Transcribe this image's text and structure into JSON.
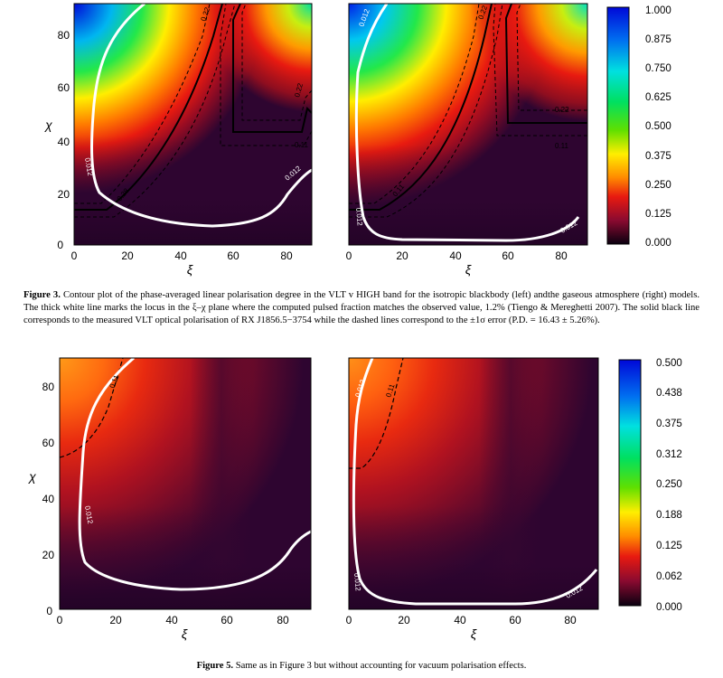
{
  "figure3": {
    "caption_label": "Figure 3.",
    "caption_text": "Contour plot of the phase-averaged linear polarisation degree in the VLT v HIGH band for the isotropic blackbody (left) andthe gaseous atmosphere (right) models. The thick white line marks the locus in the ξ–χ plane where the computed pulsed fraction matches the observed value, 1.2% (Tiengo & Mereghetti 2007). The solid black line corresponds to the measured VLT optical polarisation of RX J1856.5−3754 while the dashed lines correspond to the ±1σ error (P.D. = 16.43 ± 5.26%)."
  },
  "figure5": {
    "caption_label": "Figure 5.",
    "caption_text": "Same as in Figure 3 but without accounting for vacuum polarisation effects."
  },
  "chart_data": [
    {
      "type": "heatmap",
      "panel": "figure3-left",
      "xlabel": "ξ",
      "ylabel": "χ",
      "xlim": [
        0,
        90
      ],
      "ylim": [
        0,
        90
      ],
      "xticks": [
        "0",
        "20",
        "40",
        "60",
        "80"
      ],
      "yticks": [
        "0",
        "20",
        "40",
        "60",
        "80"
      ],
      "colorscale": "rainbow (black-purple-red-yellow-green-cyan-blue)",
      "contour_labels": [
        "0.012",
        "0.012",
        "0.22",
        "0.22",
        "0.28",
        "0.11"
      ]
    },
    {
      "type": "heatmap",
      "panel": "figure3-right",
      "xlabel": "ξ",
      "ylabel": "",
      "xlim": [
        0,
        90
      ],
      "ylim": [
        0,
        90
      ],
      "xticks": [
        "0",
        "20",
        "40",
        "60",
        "80"
      ],
      "contour_labels": [
        "0.012",
        "0.012",
        "0.012",
        "0.22",
        "0.22",
        "0.11",
        "0.11"
      ],
      "colorbar": {
        "ticks": [
          "1.000",
          "0.875",
          "0.750",
          "0.625",
          "0.500",
          "0.375",
          "0.250",
          "0.125",
          "0.000"
        ],
        "range": [
          0,
          1
        ]
      }
    },
    {
      "type": "heatmap",
      "panel": "figure5-left",
      "xlabel": "ξ",
      "ylabel": "χ",
      "xlim": [
        0,
        90
      ],
      "ylim": [
        0,
        90
      ],
      "xticks": [
        "0",
        "20",
        "40",
        "60",
        "80"
      ],
      "yticks": [
        "0",
        "20",
        "40",
        "60",
        "80"
      ],
      "contour_labels": [
        "0.11",
        "0.012"
      ]
    },
    {
      "type": "heatmap",
      "panel": "figure5-right",
      "xlabel": "ξ",
      "ylabel": "",
      "xlim": [
        0,
        90
      ],
      "ylim": [
        0,
        90
      ],
      "xticks": [
        "0",
        "20",
        "40",
        "60",
        "80"
      ],
      "contour_labels": [
        "0.11",
        "0.012",
        "0.012",
        "0.012"
      ],
      "colorbar": {
        "ticks": [
          "0.500",
          "0.438",
          "0.375",
          "0.312",
          "0.250",
          "0.188",
          "0.125",
          "0.062",
          "0.000"
        ],
        "range": [
          0,
          0.5
        ]
      }
    }
  ],
  "colors": {
    "purple": "#2e0530",
    "maroon": "#5a0a28",
    "red": "#e81a10",
    "orange": "#ff8a00",
    "yellow": "#ffee00",
    "green": "#22dd22",
    "cyan": "#00e8e8",
    "blue": "#0008d8"
  }
}
